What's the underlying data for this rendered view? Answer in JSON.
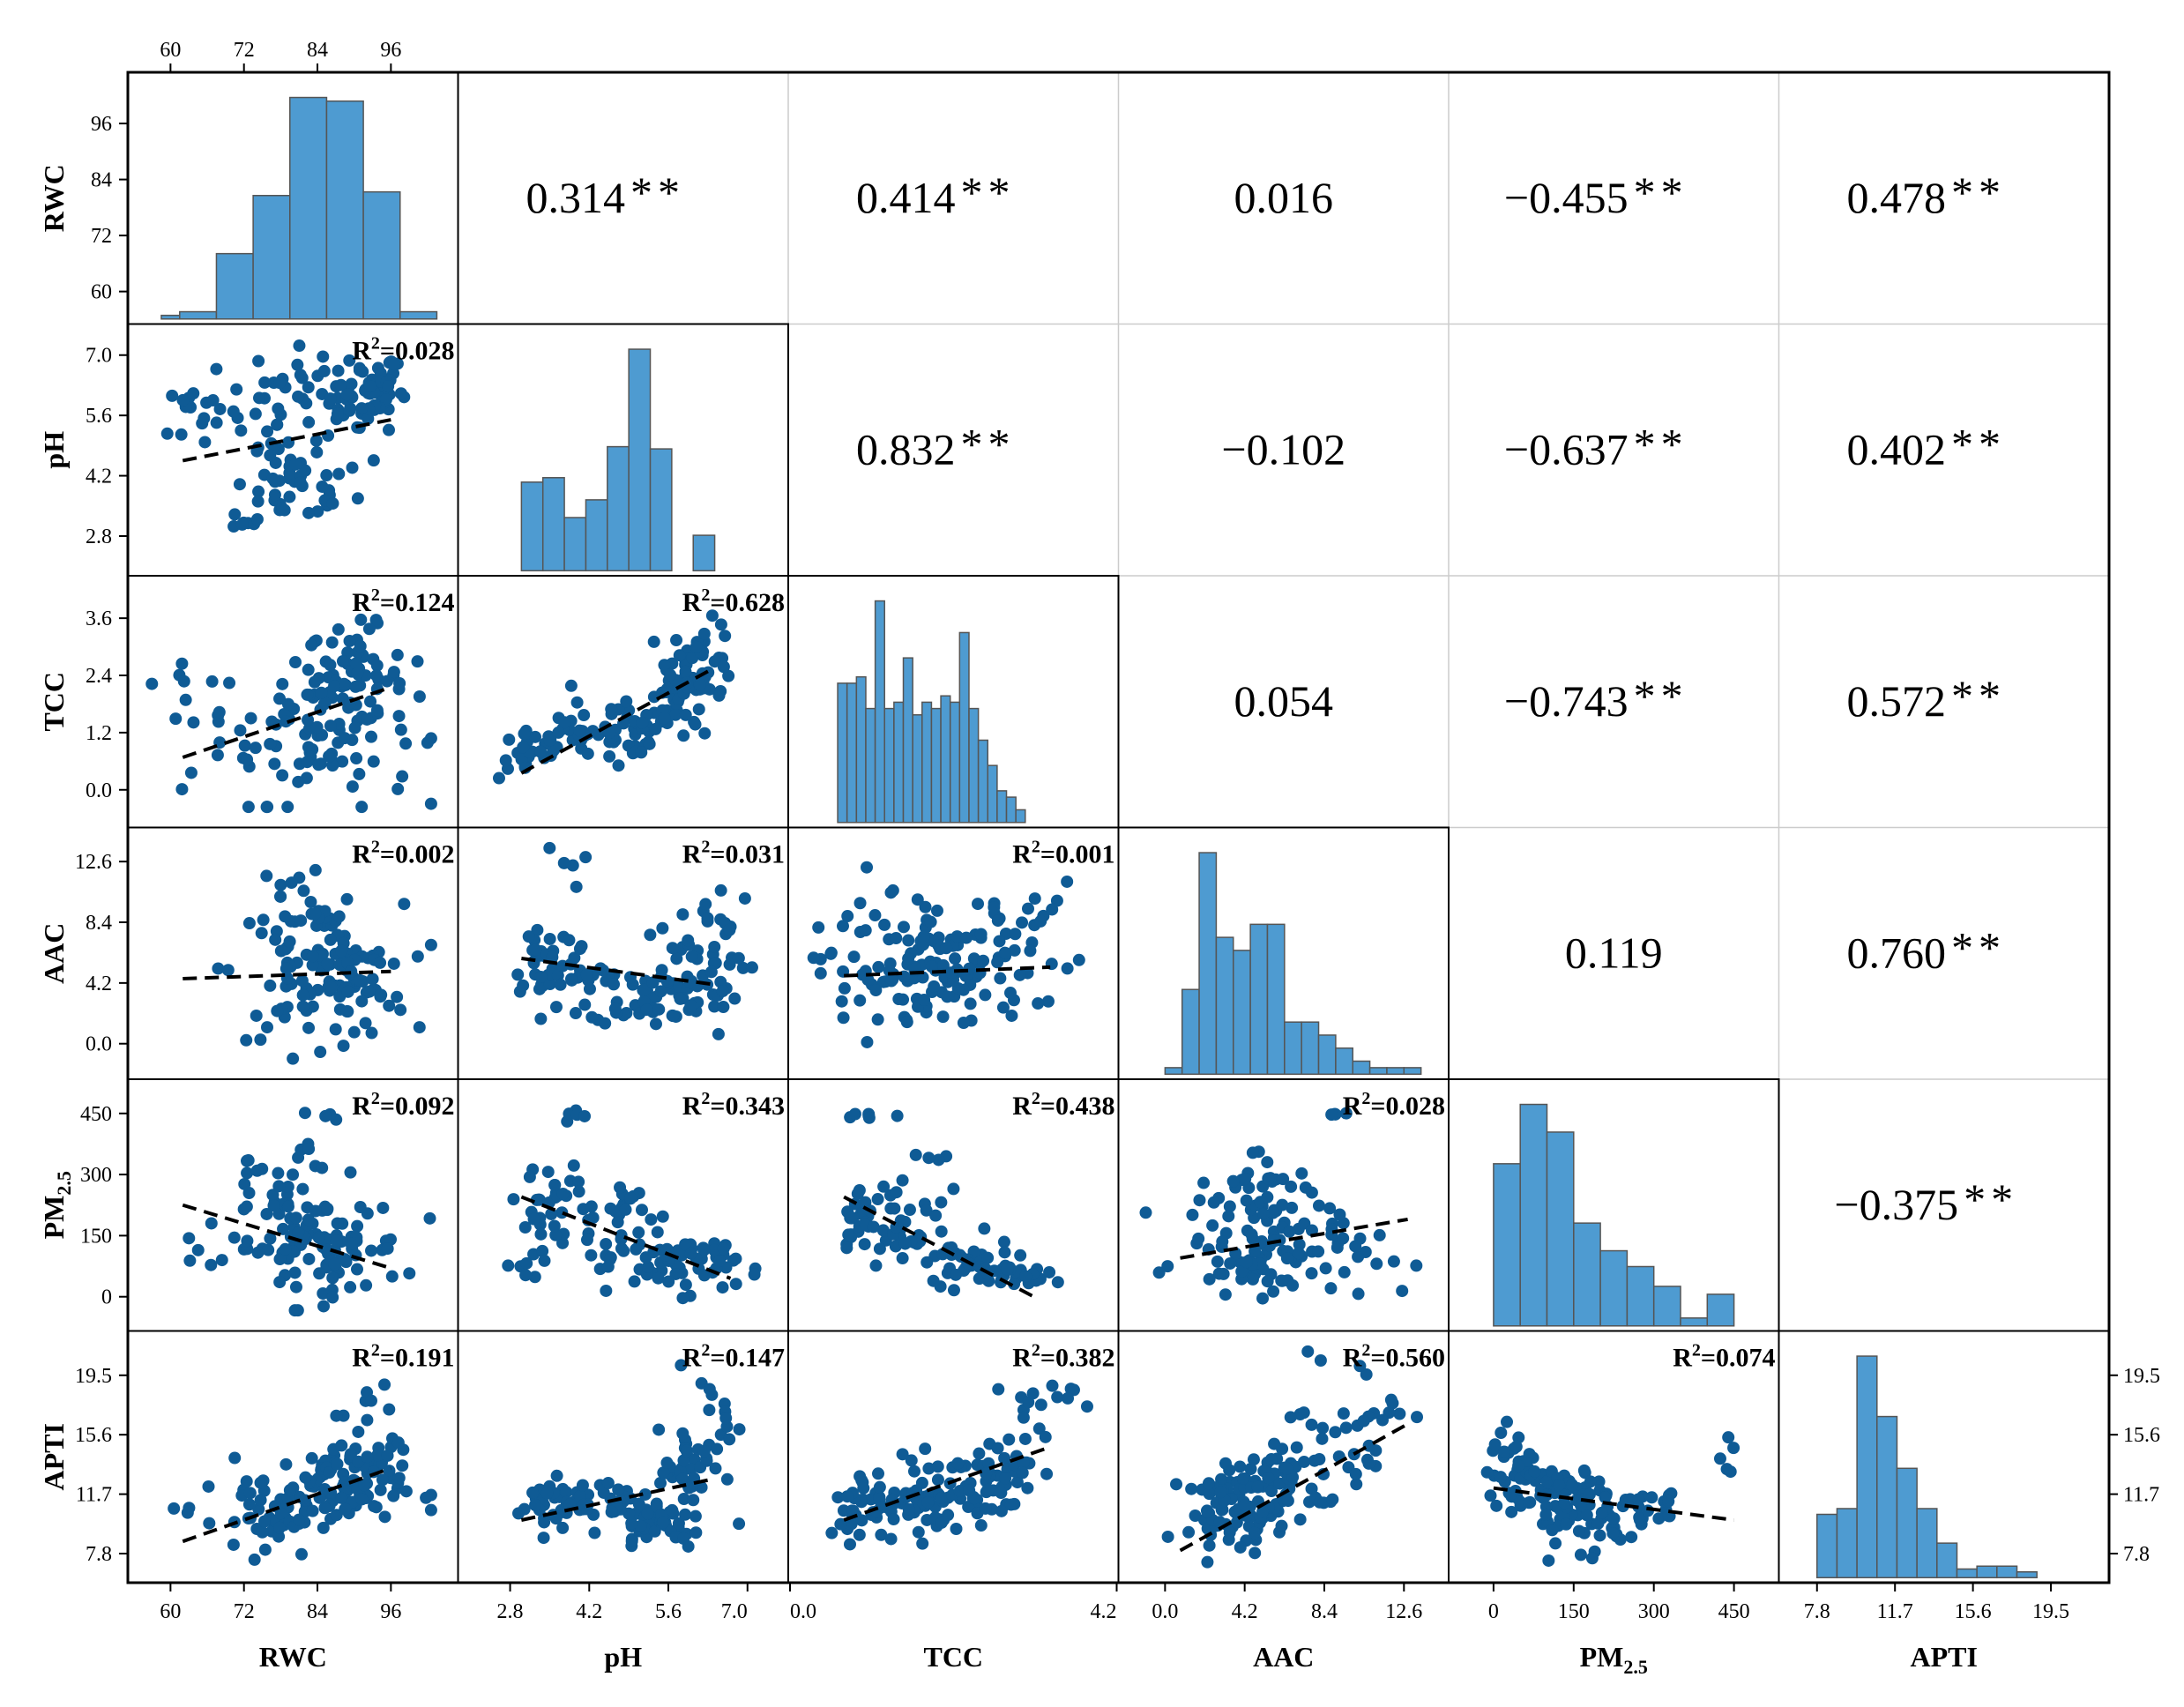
{
  "chart_data": {
    "type": "scatter",
    "variables": [
      {
        "key": "RWC",
        "label": "RWC",
        "ticks": [
          "60",
          "72",
          "84",
          "96"
        ],
        "tick_values": [
          60,
          72,
          84,
          96
        ],
        "range": [
          56,
          104
        ]
      },
      {
        "key": "pH",
        "label": "pH",
        "ticks": [
          "2.8",
          "4.2",
          "5.6",
          "7.0"
        ],
        "tick_values": [
          2.8,
          4.2,
          5.6,
          7.0
        ],
        "range": [
          2.2,
          7.4
        ]
      },
      {
        "key": "TCC",
        "label": "TCC",
        "ticks": [
          "0.0",
          "1.2",
          "2.4",
          "3.6"
        ],
        "tick_values": [
          0.0,
          1.2,
          2.4,
          3.6
        ],
        "range": [
          -0.5,
          4.2
        ]
      },
      {
        "key": "AAC",
        "label": "AAC",
        "ticks": [
          "0.0",
          "4.2",
          "8.4",
          "12.6"
        ],
        "tick_values": [
          0.0,
          4.2,
          8.4,
          12.6
        ],
        "range": [
          -1.5,
          14.0
        ]
      },
      {
        "key": "PM25",
        "label": "PM",
        "label_sub": "2.5",
        "ticks": [
          "0",
          "150",
          "300",
          "450"
        ],
        "tick_values": [
          0,
          150,
          300,
          450
        ],
        "range": [
          -50,
          500
        ]
      },
      {
        "key": "APTI",
        "label": "APTI",
        "ticks": [
          "7.8",
          "11.7",
          "15.6",
          "19.5"
        ],
        "tick_values": [
          7.8,
          11.7,
          15.6,
          19.5
        ],
        "range": [
          6.8,
          21.5
        ]
      }
    ],
    "bottom_axis_ticks": {
      "RWC": [
        "60",
        "72",
        "84",
        "96"
      ],
      "pH": [
        "2.8",
        "4.2",
        "5.6",
        "7.0"
      ],
      "TCC": [
        "0.0",
        "4.2"
      ],
      "AAC": [
        "0.0",
        "4.2",
        "8.4",
        "12.6"
      ],
      "PM25": [
        "0",
        "150",
        "300",
        "450"
      ],
      "APTI": [
        "7.8",
        "11.7",
        "15.6",
        "19.5"
      ]
    },
    "top_axis_ticks": [
      "60",
      "72",
      "84",
      "96"
    ],
    "correlations": [
      {
        "row": 0,
        "col": 1,
        "value": "0.314",
        "stars": "**"
      },
      {
        "row": 0,
        "col": 2,
        "value": "0.414",
        "stars": "**"
      },
      {
        "row": 0,
        "col": 3,
        "value": "0.016",
        "stars": ""
      },
      {
        "row": 0,
        "col": 4,
        "value": "−0.455",
        "stars": "**"
      },
      {
        "row": 0,
        "col": 5,
        "value": "0.478",
        "stars": "**"
      },
      {
        "row": 1,
        "col": 2,
        "value": "0.832",
        "stars": "**"
      },
      {
        "row": 1,
        "col": 3,
        "value": "−0.102",
        "stars": ""
      },
      {
        "row": 1,
        "col": 4,
        "value": "−0.637",
        "stars": "**"
      },
      {
        "row": 1,
        "col": 5,
        "value": "0.402",
        "stars": "**"
      },
      {
        "row": 2,
        "col": 3,
        "value": "0.054",
        "stars": ""
      },
      {
        "row": 2,
        "col": 4,
        "value": "−0.743",
        "stars": "**"
      },
      {
        "row": 2,
        "col": 5,
        "value": "0.572",
        "stars": "**"
      },
      {
        "row": 3,
        "col": 4,
        "value": "0.119",
        "stars": ""
      },
      {
        "row": 3,
        "col": 5,
        "value": "0.760",
        "stars": "**"
      },
      {
        "row": 4,
        "col": 5,
        "value": "−0.375",
        "stars": "**"
      }
    ],
    "r_squared": [
      {
        "row": 1,
        "col": 0,
        "value": "0.028"
      },
      {
        "row": 2,
        "col": 0,
        "value": "0.124"
      },
      {
        "row": 2,
        "col": 1,
        "value": "0.628"
      },
      {
        "row": 3,
        "col": 0,
        "value": "0.002"
      },
      {
        "row": 3,
        "col": 1,
        "value": "0.031"
      },
      {
        "row": 3,
        "col": 2,
        "value": "0.001"
      },
      {
        "row": 4,
        "col": 0,
        "value": "0.092"
      },
      {
        "row": 4,
        "col": 1,
        "value": "0.343"
      },
      {
        "row": 4,
        "col": 2,
        "value": "0.438"
      },
      {
        "row": 4,
        "col": 3,
        "value": "0.028"
      },
      {
        "row": 5,
        "col": 0,
        "value": "0.191"
      },
      {
        "row": 5,
        "col": 1,
        "value": "0.147"
      },
      {
        "row": 5,
        "col": 2,
        "value": "0.382"
      },
      {
        "row": 5,
        "col": 3,
        "value": "0.560"
      },
      {
        "row": 5,
        "col": 4,
        "value": "0.074"
      }
    ],
    "regression_lines": [
      {
        "row": 1,
        "col": 0,
        "x": [
          62,
          96
        ],
        "y": [
          4.55,
          5.5
        ]
      },
      {
        "row": 2,
        "col": 0,
        "x": [
          62,
          96
        ],
        "y": [
          0.68,
          2.15
        ]
      },
      {
        "row": 2,
        "col": 1,
        "x": [
          3.0,
          6.4
        ],
        "y": [
          0.35,
          2.55
        ]
      },
      {
        "row": 3,
        "col": 0,
        "x": [
          62,
          96
        ],
        "y": [
          4.5,
          5.0
        ]
      },
      {
        "row": 3,
        "col": 1,
        "x": [
          3.0,
          6.4
        ],
        "y": [
          5.9,
          4.1
        ]
      },
      {
        "row": 3,
        "col": 2,
        "x": [
          0.1,
          3.4
        ],
        "y": [
          4.7,
          5.3
        ]
      },
      {
        "row": 4,
        "col": 0,
        "x": [
          62,
          96
        ],
        "y": [
          225,
          70
        ]
      },
      {
        "row": 4,
        "col": 1,
        "x": [
          3.0,
          6.7
        ],
        "y": [
          245,
          45
        ]
      },
      {
        "row": 4,
        "col": 2,
        "x": [
          0.1,
          3.2
        ],
        "y": [
          245,
          -5
        ]
      },
      {
        "row": 4,
        "col": 3,
        "x": [
          0.8,
          12.8
        ],
        "y": [
          95,
          190
        ]
      },
      {
        "row": 5,
        "col": 0,
        "x": [
          62,
          96
        ],
        "y": [
          8.6,
          13.4
        ]
      },
      {
        "row": 5,
        "col": 1,
        "x": [
          3.0,
          6.4
        ],
        "y": [
          10.0,
          12.7
        ]
      },
      {
        "row": 5,
        "col": 2,
        "x": [
          0.1,
          3.4
        ],
        "y": [
          10.0,
          14.8
        ]
      },
      {
        "row": 5,
        "col": 3,
        "x": [
          0.8,
          12.8
        ],
        "y": [
          8.0,
          16.3
        ]
      },
      {
        "row": 5,
        "col": 4,
        "x": [
          0,
          450
        ],
        "y": [
          12.1,
          10.0
        ]
      }
    ],
    "scatter_clusters": [
      {
        "row": 1,
        "col": 0,
        "clusters": [
          [
            84,
            5.8,
            8,
            0.7,
            70
          ],
          [
            80,
            3.9,
            5,
            0.4,
            40
          ],
          [
            92,
            6.2,
            3,
            0.4,
            40
          ],
          [
            66,
            5.6,
            3,
            0.5,
            10
          ],
          [
            62,
            6.0,
            1,
            0.15,
            3
          ],
          [
            72,
            3.1,
            1.5,
            0.06,
            6
          ]
        ]
      },
      {
        "row": 2,
        "col": 0,
        "clusters": [
          [
            84,
            1.3,
            8,
            0.8,
            90
          ],
          [
            90,
            2.4,
            4,
            0.5,
            55
          ],
          [
            66,
            1.1,
            3,
            0.6,
            10
          ],
          [
            62,
            2.0,
            1,
            0.4,
            3
          ]
        ]
      },
      {
        "row": 2,
        "col": 1,
        "clusters": [
          [
            3.2,
            0.8,
            0.3,
            0.3,
            25
          ],
          [
            4.1,
            1.2,
            0.5,
            0.3,
            35
          ],
          [
            5.0,
            1.1,
            0.3,
            0.4,
            25
          ],
          [
            5.8,
            1.8,
            0.3,
            0.4,
            40
          ],
          [
            6.2,
            2.7,
            0.3,
            0.4,
            40
          ]
        ]
      },
      {
        "row": 3,
        "col": 0,
        "clusters": [
          [
            84,
            5.0,
            7,
            2.3,
            100
          ],
          [
            90,
            4.0,
            4,
            1.8,
            30
          ],
          [
            82,
            10.0,
            4,
            1.5,
            15
          ]
        ]
      },
      {
        "row": 3,
        "col": 1,
        "clusters": [
          [
            3.4,
            6.0,
            0.3,
            1.5,
            30
          ],
          [
            4.1,
            4.5,
            0.4,
            1.2,
            20
          ],
          [
            5.2,
            3.3,
            0.5,
            1.0,
            45
          ],
          [
            5.9,
            4.5,
            0.5,
            2.0,
            45
          ],
          [
            6.4,
            8.5,
            0.3,
            1.4,
            12
          ],
          [
            4.0,
            12.0,
            0.3,
            0.9,
            5
          ]
        ]
      },
      {
        "row": 3,
        "col": 2,
        "clusters": [
          [
            0.7,
            5.0,
            0.5,
            2.2,
            55
          ],
          [
            2.0,
            5.0,
            0.6,
            2.2,
            70
          ],
          [
            3.0,
            7.5,
            0.4,
            1.8,
            25
          ],
          [
            0.7,
            11.0,
            0.4,
            1.5,
            8
          ]
        ]
      },
      {
        "row": 4,
        "col": 0,
        "clusters": [
          [
            84,
            120,
            7,
            60,
            100
          ],
          [
            78,
            250,
            4,
            40,
            20
          ],
          [
            84,
            330,
            3,
            30,
            8
          ],
          [
            86,
            445,
            2,
            5,
            4
          ],
          [
            64,
            110,
            1,
            30,
            3
          ]
        ]
      },
      {
        "row": 4,
        "col": 1,
        "clusters": [
          [
            3.3,
            180,
            0.25,
            60,
            30
          ],
          [
            4.0,
            260,
            0.3,
            40,
            12
          ],
          [
            4.0,
            445,
            0.15,
            5,
            5
          ],
          [
            4.9,
            200,
            0.3,
            50,
            20
          ],
          [
            5.9,
            80,
            0.45,
            35,
            60
          ],
          [
            4.5,
            110,
            0.3,
            40,
            15
          ]
        ]
      },
      {
        "row": 4,
        "col": 2,
        "clusters": [
          [
            0.5,
            200,
            0.3,
            50,
            30
          ],
          [
            1.2,
            150,
            0.4,
            50,
            30
          ],
          [
            2.0,
            80,
            0.4,
            30,
            35
          ],
          [
            2.8,
            50,
            0.4,
            20,
            25
          ],
          [
            0.5,
            445,
            0.2,
            5,
            6
          ],
          [
            1.7,
            350,
            0.2,
            10,
            4
          ]
        ]
      },
      {
        "row": 4,
        "col": 3,
        "clusters": [
          [
            5.0,
            130,
            2.0,
            60,
            90
          ],
          [
            5.5,
            280,
            1.5,
            50,
            25
          ],
          [
            10.0,
            100,
            1.5,
            40,
            15
          ],
          [
            8.5,
            445,
            0.5,
            5,
            4
          ]
        ]
      },
      {
        "row": 5,
        "col": 0,
        "clusters": [
          [
            86,
            12.0,
            6,
            1.3,
            110
          ],
          [
            76,
            10.0,
            4,
            1.2,
            30
          ],
          [
            92,
            15.5,
            3,
            1.8,
            20
          ],
          [
            62,
            11.0,
            1,
            0.6,
            3
          ]
        ]
      },
      {
        "row": 5,
        "col": 1,
        "clusters": [
          [
            3.5,
            11.0,
            0.3,
            0.9,
            30
          ],
          [
            4.5,
            11.3,
            0.4,
            0.9,
            30
          ],
          [
            5.4,
            10.0,
            0.4,
            1.0,
            40
          ],
          [
            6.0,
            13.0,
            0.3,
            1.5,
            40
          ],
          [
            6.5,
            17.0,
            0.2,
            1.5,
            15
          ]
        ]
      },
      {
        "row": 5,
        "col": 2,
        "clusters": [
          [
            0.6,
            11.0,
            0.4,
            1.2,
            50
          ],
          [
            1.6,
            11.7,
            0.4,
            1.2,
            50
          ],
          [
            2.5,
            13.0,
            0.4,
            1.5,
            45
          ],
          [
            3.2,
            17.5,
            0.3,
            1.5,
            15
          ]
        ]
      },
      {
        "row": 5,
        "col": 3,
        "clusters": [
          [
            3.5,
            10.5,
            1.2,
            1.2,
            60
          ],
          [
            5.5,
            12.0,
            1.3,
            1.3,
            50
          ],
          [
            8.0,
            14.5,
            1.5,
            1.5,
            30
          ],
          [
            10.5,
            17.5,
            1.5,
            1.5,
            15
          ]
        ]
      },
      {
        "row": 5,
        "col": 4,
        "clusters": [
          [
            40,
            13.0,
            25,
            1.5,
            40
          ],
          [
            110,
            11.5,
            35,
            1.4,
            50
          ],
          [
            200,
            10.5,
            45,
            1.3,
            40
          ],
          [
            300,
            10.8,
            40,
            0.8,
            15
          ],
          [
            435,
            13.5,
            10,
            1.0,
            5
          ]
        ]
      }
    ],
    "histograms": [
      {
        "index": 0,
        "bins": [
          58.5,
          61.5,
          67.5,
          73.5,
          79.5,
          85.5,
          91.5,
          97.5,
          103.5
        ],
        "counts": [
          1,
          2,
          18,
          34,
          61,
          60,
          35,
          2
        ]
      },
      {
        "index": 1,
        "bins": [
          3.0,
          3.38,
          3.76,
          4.14,
          4.52,
          4.9,
          5.28,
          5.66,
          6.04,
          6.42
        ],
        "counts": [
          40,
          42,
          24,
          32,
          56,
          100,
          55,
          0,
          16
        ]
      },
      {
        "index": 2,
        "bins": [
          0.0,
          0.15,
          0.3,
          0.45,
          0.6,
          0.75,
          0.9,
          1.05,
          1.2,
          1.35,
          1.5,
          1.65,
          1.8,
          1.95,
          2.1,
          2.25,
          2.4,
          2.55,
          2.7,
          2.85,
          3.0
        ],
        "counts": [
          22,
          22,
          23,
          18,
          35,
          18,
          19,
          26,
          17,
          19,
          18,
          20,
          19,
          30,
          18,
          13,
          9,
          5,
          4,
          2
        ]
      },
      {
        "index": 3,
        "bins": [
          0.0,
          0.9,
          1.8,
          2.7,
          3.6,
          4.5,
          5.4,
          6.3,
          7.2,
          8.1,
          9.0,
          9.9,
          10.8,
          11.7,
          12.6,
          13.5
        ],
        "counts": [
          1,
          13,
          34,
          21,
          19,
          23,
          23,
          8,
          8,
          6,
          4,
          2,
          1,
          1,
          1
        ]
      },
      {
        "index": 4,
        "bins": [
          0,
          50,
          100,
          150,
          200,
          250,
          300,
          350,
          400,
          450
        ],
        "counts": [
          41,
          56,
          49,
          26,
          19,
          15,
          10,
          2,
          8
        ]
      },
      {
        "index": 5,
        "bins": [
          7.8,
          8.8,
          9.8,
          10.8,
          11.8,
          12.8,
          13.8,
          14.8,
          15.8,
          16.8,
          17.8,
          18.8
        ],
        "counts": [
          22,
          24,
          77,
          56,
          38,
          24,
          12,
          3,
          4,
          4,
          2
        ]
      }
    ],
    "scatter_color": "#0f5b95",
    "hist_fill": "#4e9bd1",
    "hist_edge": "#555555",
    "grid_color": "#cccccc",
    "legend_position": "none",
    "grid": "upper-triangle only"
  }
}
